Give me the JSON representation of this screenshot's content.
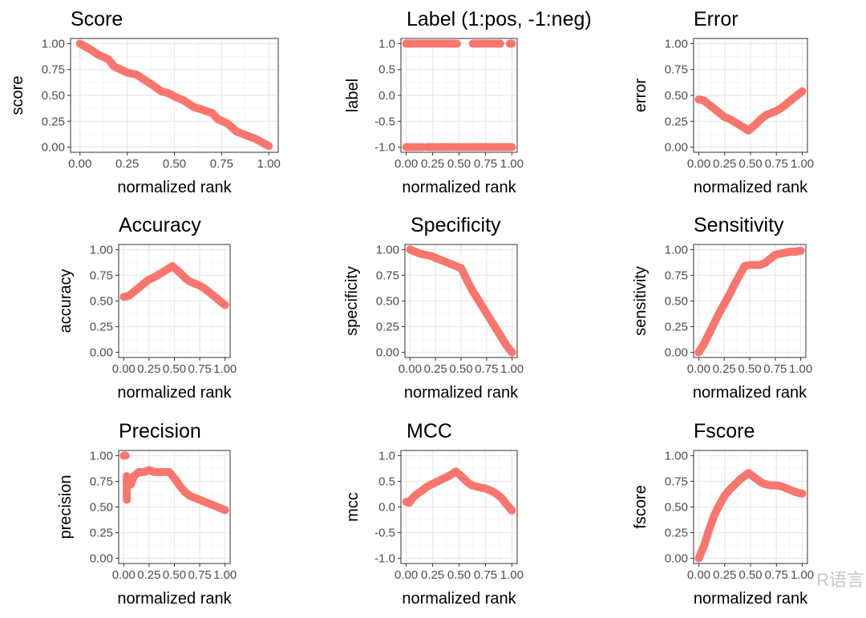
{
  "colors": {
    "point": "#F8766D",
    "border": "#333333",
    "grid_major": "#ebebeb",
    "grid_minor": "#f5f5f5"
  },
  "watermark": "R语言",
  "chart_data": [
    {
      "type": "scatter",
      "title": "Score",
      "xlabel": "normalized rank",
      "ylabel": "score",
      "xlim": [
        0,
        1
      ],
      "ylim": [
        0,
        1
      ],
      "xticks": [
        "0.00",
        "0.25",
        "0.50",
        "0.75",
        "1.00"
      ],
      "yticks": [
        0,
        0.25,
        0.5,
        0.75,
        1
      ],
      "ytick_labels": [
        "0.00",
        "0.25",
        "0.50",
        "0.75",
        "1.00"
      ],
      "series": [
        [
          [
            0,
            1
          ],
          [
            0.05,
            0.95
          ],
          [
            0.1,
            0.89
          ],
          [
            0.15,
            0.85
          ],
          [
            0.18,
            0.78
          ],
          [
            0.25,
            0.72
          ],
          [
            0.3,
            0.7
          ],
          [
            0.35,
            0.64
          ],
          [
            0.4,
            0.58
          ],
          [
            0.43,
            0.54
          ],
          [
            0.47,
            0.52
          ],
          [
            0.5,
            0.49
          ],
          [
            0.55,
            0.45
          ],
          [
            0.6,
            0.39
          ],
          [
            0.65,
            0.36
          ],
          [
            0.7,
            0.33
          ],
          [
            0.73,
            0.27
          ],
          [
            0.78,
            0.23
          ],
          [
            0.83,
            0.15
          ],
          [
            0.9,
            0.1
          ],
          [
            0.93,
            0.08
          ],
          [
            0.97,
            0.04
          ],
          [
            1,
            0.01
          ]
        ]
      ]
    },
    {
      "type": "scatter",
      "title": "Label (1:pos, -1:neg)",
      "xlabel": "normalized rank",
      "ylabel": "label",
      "xlim": [
        0,
        1
      ],
      "ylim": [
        -1,
        1
      ],
      "xticks": [
        "0.00",
        "0.25",
        "0.50",
        "0.75",
        "1.00"
      ],
      "yticks": [
        -1,
        -0.5,
        0,
        0.5,
        1
      ],
      "ytick_labels": [
        "-1.0",
        "-0.5",
        "0.0",
        "0.5",
        "1.0"
      ],
      "series": [
        [
          [
            0,
            1
          ],
          [
            0.48,
            1
          ]
        ],
        [
          [
            0.63,
            1
          ],
          [
            0.81,
            1
          ]
        ],
        [
          [
            0.84,
            1
          ],
          [
            0.89,
            1
          ]
        ],
        [
          [
            0.98,
            1
          ],
          [
            1,
            1
          ]
        ],
        [
          [
            0,
            -1
          ],
          [
            0.1,
            -1
          ]
        ],
        [
          [
            0.13,
            -1
          ],
          [
            0.16,
            -1
          ]
        ],
        [
          [
            0.2,
            -1
          ],
          [
            1,
            -1
          ]
        ]
      ]
    },
    {
      "type": "scatter",
      "title": "Error",
      "xlabel": "normalized rank",
      "ylabel": "error",
      "xlim": [
        0,
        1
      ],
      "ylim": [
        0,
        1
      ],
      "xticks": [
        "0.00",
        "0.25",
        "0.50",
        "0.75",
        "1.00"
      ],
      "yticks": [
        0,
        0.25,
        0.5,
        0.75,
        1
      ],
      "ytick_labels": [
        "0.00",
        "0.25",
        "0.50",
        "0.75",
        "1.00"
      ],
      "series": [
        [
          [
            0,
            0.46
          ],
          [
            0.05,
            0.45
          ],
          [
            0.1,
            0.41
          ],
          [
            0.15,
            0.37
          ],
          [
            0.2,
            0.33
          ],
          [
            0.25,
            0.29
          ],
          [
            0.3,
            0.27
          ],
          [
            0.35,
            0.24
          ],
          [
            0.4,
            0.21
          ],
          [
            0.45,
            0.18
          ],
          [
            0.48,
            0.16
          ],
          [
            0.55,
            0.22
          ],
          [
            0.6,
            0.27
          ],
          [
            0.65,
            0.31
          ],
          [
            0.7,
            0.33
          ],
          [
            0.75,
            0.35
          ],
          [
            0.8,
            0.38
          ],
          [
            0.85,
            0.42
          ],
          [
            0.9,
            0.46
          ],
          [
            0.95,
            0.5
          ],
          [
            1,
            0.54
          ]
        ]
      ]
    },
    {
      "type": "scatter",
      "title": "Accuracy",
      "xlabel": "normalized rank",
      "ylabel": "accuracy",
      "xlim": [
        0,
        1
      ],
      "ylim": [
        0,
        1
      ],
      "xticks": [
        "0.00",
        "0.25",
        "0.50",
        "0.75",
        "1.00"
      ],
      "yticks": [
        0,
        0.25,
        0.5,
        0.75,
        1
      ],
      "ytick_labels": [
        "0.00",
        "0.25",
        "0.50",
        "0.75",
        "1.00"
      ],
      "series": [
        [
          [
            0,
            0.54
          ],
          [
            0.05,
            0.55
          ],
          [
            0.1,
            0.59
          ],
          [
            0.15,
            0.63
          ],
          [
            0.2,
            0.67
          ],
          [
            0.25,
            0.71
          ],
          [
            0.3,
            0.73
          ],
          [
            0.35,
            0.76
          ],
          [
            0.4,
            0.79
          ],
          [
            0.45,
            0.82
          ],
          [
            0.48,
            0.84
          ],
          [
            0.55,
            0.78
          ],
          [
            0.6,
            0.73
          ],
          [
            0.65,
            0.69
          ],
          [
            0.7,
            0.67
          ],
          [
            0.75,
            0.65
          ],
          [
            0.8,
            0.62
          ],
          [
            0.85,
            0.58
          ],
          [
            0.9,
            0.54
          ],
          [
            0.95,
            0.5
          ],
          [
            1,
            0.46
          ]
        ]
      ]
    },
    {
      "type": "scatter",
      "title": "Specificity",
      "xlabel": "normalized rank",
      "ylabel": "specificity",
      "xlim": [
        0,
        1
      ],
      "ylim": [
        0,
        1
      ],
      "xticks": [
        "0.00",
        "0.25",
        "0.50",
        "0.75",
        "1.00"
      ],
      "yticks": [
        0,
        0.25,
        0.5,
        0.75,
        1
      ],
      "ytick_labels": [
        "0.00",
        "0.25",
        "0.50",
        "0.75",
        "1.00"
      ],
      "series": [
        [
          [
            0,
            1
          ],
          [
            0.05,
            0.98
          ],
          [
            0.1,
            0.96
          ],
          [
            0.15,
            0.95
          ],
          [
            0.2,
            0.94
          ],
          [
            0.25,
            0.92
          ],
          [
            0.3,
            0.9
          ],
          [
            0.35,
            0.88
          ],
          [
            0.4,
            0.86
          ],
          [
            0.45,
            0.84
          ],
          [
            0.5,
            0.82
          ],
          [
            0.55,
            0.72
          ],
          [
            0.6,
            0.62
          ],
          [
            0.65,
            0.54
          ],
          [
            0.7,
            0.46
          ],
          [
            0.75,
            0.38
          ],
          [
            0.8,
            0.3
          ],
          [
            0.85,
            0.22
          ],
          [
            0.9,
            0.14
          ],
          [
            0.95,
            0.06
          ],
          [
            1,
            0
          ]
        ]
      ]
    },
    {
      "type": "scatter",
      "title": "Sensitivity",
      "xlabel": "normalized rank",
      "ylabel": "sensitivity",
      "xlim": [
        0,
        1
      ],
      "ylim": [
        0,
        1
      ],
      "xticks": [
        "0.00",
        "0.25",
        "0.50",
        "0.75",
        "1.00"
      ],
      "yticks": [
        0,
        0.25,
        0.5,
        0.75,
        1
      ],
      "ytick_labels": [
        "0.00",
        "0.25",
        "0.50",
        "0.75",
        "1.00"
      ],
      "series": [
        [
          [
            0,
            0
          ],
          [
            0.05,
            0.08
          ],
          [
            0.1,
            0.18
          ],
          [
            0.15,
            0.28
          ],
          [
            0.2,
            0.38
          ],
          [
            0.25,
            0.47
          ],
          [
            0.3,
            0.56
          ],
          [
            0.35,
            0.66
          ],
          [
            0.4,
            0.75
          ],
          [
            0.45,
            0.84
          ],
          [
            0.5,
            0.85
          ],
          [
            0.55,
            0.85
          ],
          [
            0.6,
            0.85
          ],
          [
            0.65,
            0.87
          ],
          [
            0.7,
            0.91
          ],
          [
            0.75,
            0.95
          ],
          [
            0.8,
            0.96
          ],
          [
            0.85,
            0.97
          ],
          [
            0.9,
            0.98
          ],
          [
            0.95,
            0.98
          ],
          [
            1,
            0.99
          ]
        ]
      ]
    },
    {
      "type": "scatter",
      "title": "Precision",
      "xlabel": "normalized rank",
      "ylabel": "precision",
      "xlim": [
        0,
        1
      ],
      "ylim": [
        0,
        1
      ],
      "xticks": [
        "0.00",
        "0.25",
        "0.50",
        "0.75",
        "1.00"
      ],
      "yticks": [
        0,
        0.25,
        0.5,
        0.75,
        1
      ],
      "ytick_labels": [
        "0.00",
        "0.25",
        "0.50",
        "0.75",
        "1.00"
      ],
      "series": [
        [
          [
            0,
            1
          ],
          [
            0.02,
            1
          ]
        ],
        [
          [
            0.03,
            0.8
          ],
          [
            0.03,
            0.57
          ]
        ],
        [
          [
            0.03,
            0.75
          ],
          [
            0.07,
            0.72
          ],
          [
            0.1,
            0.8
          ],
          [
            0.15,
            0.84
          ],
          [
            0.2,
            0.84
          ],
          [
            0.25,
            0.86
          ],
          [
            0.3,
            0.84
          ],
          [
            0.45,
            0.84
          ],
          [
            0.5,
            0.78
          ],
          [
            0.55,
            0.71
          ],
          [
            0.6,
            0.65
          ],
          [
            0.65,
            0.61
          ],
          [
            0.7,
            0.59
          ],
          [
            0.75,
            0.57
          ],
          [
            0.8,
            0.55
          ],
          [
            0.85,
            0.53
          ],
          [
            0.9,
            0.51
          ],
          [
            0.95,
            0.49
          ],
          [
            1,
            0.47
          ]
        ]
      ]
    },
    {
      "type": "scatter",
      "title": "MCC",
      "xlabel": "normalized rank",
      "ylabel": "mcc",
      "xlim": [
        0,
        1
      ],
      "ylim": [
        -1,
        1
      ],
      "xticks": [
        "0.00",
        "0.25",
        "0.50",
        "0.75",
        "1.00"
      ],
      "yticks": [
        -1,
        -0.5,
        0,
        0.5,
        1
      ],
      "ytick_labels": [
        "-1.0",
        "-0.5",
        "0.0",
        "0.5",
        "1.0"
      ],
      "series": [
        [
          [
            0,
            0.1
          ],
          [
            0.03,
            0.08
          ],
          [
            0.05,
            0.15
          ],
          [
            0.1,
            0.25
          ],
          [
            0.15,
            0.32
          ],
          [
            0.2,
            0.4
          ],
          [
            0.25,
            0.45
          ],
          [
            0.3,
            0.5
          ],
          [
            0.35,
            0.55
          ],
          [
            0.4,
            0.6
          ],
          [
            0.47,
            0.69
          ],
          [
            0.52,
            0.6
          ],
          [
            0.58,
            0.48
          ],
          [
            0.62,
            0.42
          ],
          [
            0.7,
            0.38
          ],
          [
            0.75,
            0.36
          ],
          [
            0.8,
            0.32
          ],
          [
            0.85,
            0.26
          ],
          [
            0.9,
            0.18
          ],
          [
            0.95,
            0.05
          ],
          [
            1,
            -0.07
          ]
        ]
      ]
    },
    {
      "type": "scatter",
      "title": "Fscore",
      "xlabel": "normalized rank",
      "ylabel": "fscore",
      "xlim": [
        0,
        1
      ],
      "ylim": [
        0,
        1
      ],
      "xticks": [
        "0.00",
        "0.25",
        "0.50",
        "0.75",
        "1.00"
      ],
      "yticks": [
        0,
        0.25,
        0.5,
        0.75,
        1
      ],
      "ytick_labels": [
        "0.00",
        "0.25",
        "0.50",
        "0.75",
        "1.00"
      ],
      "series": [
        [
          [
            0,
            0
          ],
          [
            0.05,
            0.12
          ],
          [
            0.1,
            0.28
          ],
          [
            0.15,
            0.42
          ],
          [
            0.2,
            0.52
          ],
          [
            0.25,
            0.61
          ],
          [
            0.3,
            0.67
          ],
          [
            0.35,
            0.72
          ],
          [
            0.4,
            0.77
          ],
          [
            0.48,
            0.83
          ],
          [
            0.55,
            0.78
          ],
          [
            0.6,
            0.74
          ],
          [
            0.65,
            0.72
          ],
          [
            0.7,
            0.71
          ],
          [
            0.75,
            0.71
          ],
          [
            0.8,
            0.7
          ],
          [
            0.85,
            0.68
          ],
          [
            0.9,
            0.66
          ],
          [
            0.95,
            0.64
          ],
          [
            1,
            0.63
          ]
        ]
      ]
    }
  ]
}
